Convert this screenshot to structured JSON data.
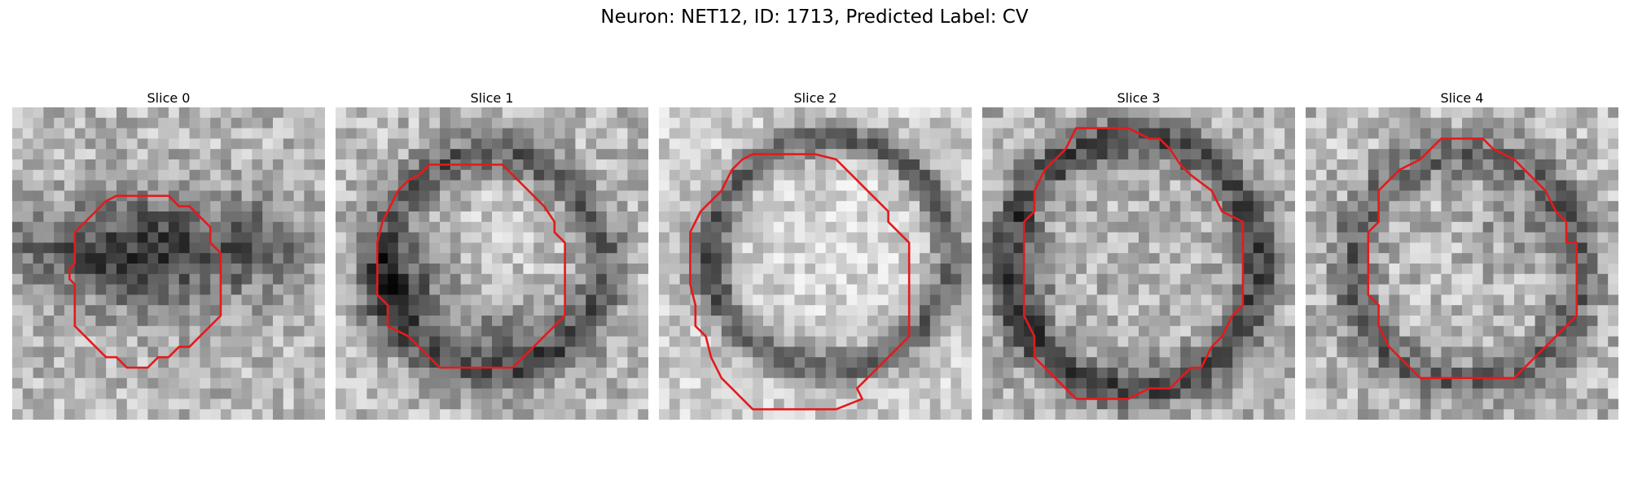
{
  "figure": {
    "title": "Neuron: NET12, ID: 1713, Predicted Label: CV"
  },
  "colors": {
    "contour": "#e41a1c",
    "background": "#ffffff"
  },
  "image_grid": {
    "cols": 30,
    "rows": 30
  },
  "panels": [
    {
      "title": "Slice 0"
    },
    {
      "title": "Slice 1"
    },
    {
      "title": "Slice 2"
    },
    {
      "title": "Slice 3"
    },
    {
      "title": "Slice 4"
    }
  ]
}
